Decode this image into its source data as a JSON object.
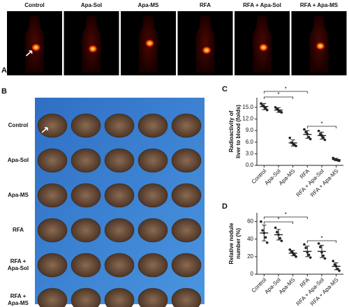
{
  "panel_a": {
    "label": "A",
    "titles": [
      "Control",
      "Apa-Sol",
      "Apa-MS",
      "RFA",
      "RFA + Apa-Sol",
      "RFA + Apa-MS"
    ]
  },
  "panel_b": {
    "label": "B",
    "rows": [
      [
        "Control"
      ],
      [
        "Apa-Sol"
      ],
      [
        "Apa-MS"
      ],
      [
        "RFA"
      ],
      [
        "RFA +",
        "Apa-Sol"
      ],
      [
        "RFA +",
        "Apa-MS"
      ]
    ]
  },
  "chart_data": [
    {
      "type": "dot",
      "panel": "C",
      "ylabel": [
        "Radioactivity of",
        "liver to blood (folds)"
      ],
      "categories": [
        "Control",
        "Apa-Sol",
        "Apa-MS",
        "RFA",
        "RFA + Apa-Sol",
        "RFA + Apa-MS"
      ],
      "values": [
        15.2,
        14.3,
        5.8,
        8.0,
        7.7,
        1.5
      ],
      "errors": [
        0.8,
        0.6,
        0.8,
        1.0,
        0.9,
        0.3
      ],
      "points": [
        [
          16.0,
          15.5,
          15.2,
          14.8,
          14.3
        ],
        [
          15.0,
          14.6,
          14.2,
          13.9,
          13.7
        ],
        [
          7.1,
          5.9,
          5.6,
          5.3,
          5.0
        ],
        [
          9.3,
          8.6,
          8.1,
          7.3,
          6.8
        ],
        [
          8.9,
          8.1,
          7.7,
          7.2,
          6.6
        ],
        [
          1.9,
          1.6,
          1.5,
          1.3,
          1.2
        ]
      ],
      "ylim": [
        0,
        17.5
      ],
      "yticks": [
        {
          "value": 0,
          "label": "0.0"
        },
        {
          "value": 3,
          "label": "3.0"
        },
        {
          "value": 6,
          "label": "6.0"
        },
        {
          "value": 9,
          "label": "9.0"
        },
        {
          "value": 12,
          "label": "12.0"
        },
        {
          "value": 15,
          "label": "15.0"
        }
      ],
      "annotations": [
        "*",
        "*",
        "*"
      ],
      "color": "#222222"
    },
    {
      "type": "dot",
      "panel": "D",
      "ylabel": [
        "Relative nodule",
        "number (%)"
      ],
      "categories": [
        "Control",
        "Apa-Sol",
        "Apa-MS",
        "RFA",
        "RFA + Apa-Sol",
        "RFA + Apa-MS"
      ],
      "values": [
        47,
        45,
        24,
        26,
        26,
        9
      ],
      "errors": [
        9,
        6,
        3,
        6,
        7,
        4
      ],
      "points": [
        [
          60,
          50,
          47,
          42,
          36
        ],
        [
          53,
          48,
          45,
          41,
          38
        ],
        [
          28,
          26,
          24,
          22,
          20
        ],
        [
          34,
          30,
          25,
          22,
          19
        ],
        [
          35,
          31,
          25,
          21,
          18
        ],
        [
          15,
          11,
          9,
          6,
          4
        ]
      ],
      "ylim": [
        0,
        70
      ],
      "yticks": [
        0,
        20,
        40,
        60
      ],
      "annotations": [
        "*",
        "*",
        "*"
      ],
      "color": "#222222"
    }
  ]
}
